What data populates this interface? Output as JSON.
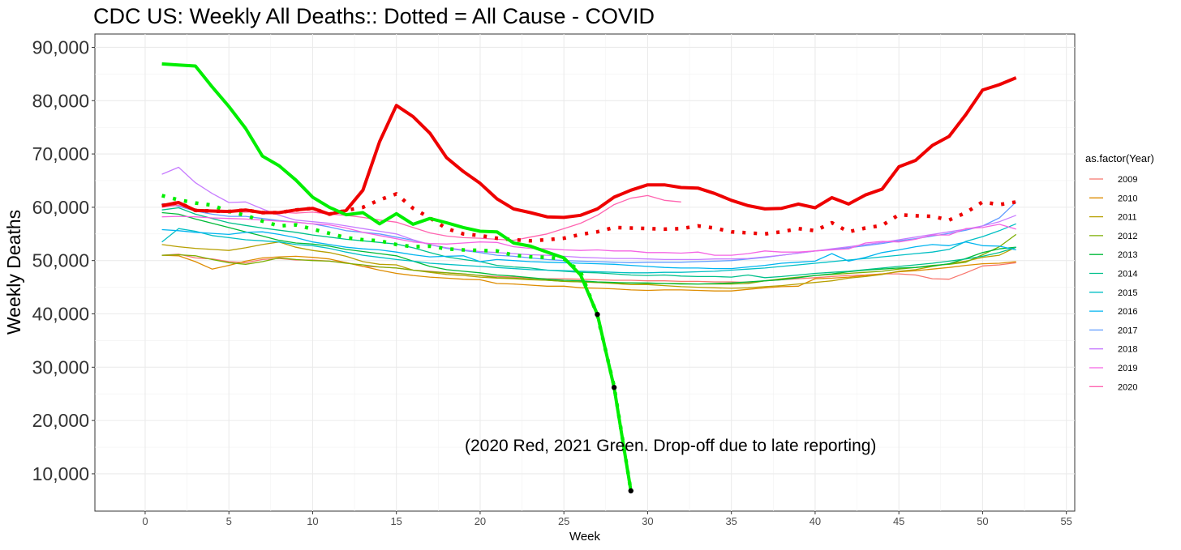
{
  "chart_data": {
    "type": "line",
    "title": "CDC US: Weekly All Deaths:: Dotted = All Cause - COVID",
    "xlabel": "Week",
    "ylabel": "Weekly Deaths",
    "xlim": [
      -3,
      55.5
    ],
    "ylim": [
      3000,
      92500
    ],
    "xticks": [
      0,
      5,
      10,
      15,
      20,
      25,
      30,
      35,
      40,
      45,
      50,
      55
    ],
    "yticks": [
      10000,
      20000,
      30000,
      40000,
      50000,
      60000,
      70000,
      80000,
      90000
    ],
    "ytick_labels": [
      "10,000",
      "20,000",
      "30,000",
      "40,000",
      "50,000",
      "60,000",
      "70,000",
      "80,000",
      "90,000"
    ],
    "grid": true,
    "legend": {
      "title": "as.factor(Year)",
      "position": "right"
    },
    "annotation": {
      "text": "(2020 Red, 2021 Green. Drop-off due to late reporting)",
      "x": 33,
      "y": 14500
    },
    "series": [
      {
        "name": "2009",
        "color": "#F8766D",
        "values": [
          51000,
          51200,
          50500,
          50300,
          49800,
          49600,
          50200,
          50400,
          50100,
          50100,
          49900,
          49600,
          48900,
          48800,
          48600,
          48200,
          48000,
          47700,
          47500,
          47200,
          47000,
          46900,
          46700,
          46600,
          46600,
          46500,
          46400,
          46300,
          46300,
          46200,
          46200,
          46100,
          46100,
          46000,
          46000,
          45900,
          46200,
          46400,
          46600,
          46800,
          47000,
          47200,
          47300,
          47500,
          47500,
          47300,
          46600,
          46500,
          47700,
          49000,
          49200,
          49600
        ]
      },
      {
        "name": "2010",
        "color": "#DE8C00",
        "values": [
          51000,
          50900,
          49800,
          48400,
          49100,
          49900,
          50500,
          50700,
          50800,
          50600,
          50300,
          49600,
          48900,
          48200,
          47600,
          47200,
          46900,
          46700,
          46500,
          46400,
          45700,
          45600,
          45400,
          45200,
          45200,
          44900,
          44800,
          44700,
          44500,
          44400,
          44500,
          44500,
          44400,
          44300,
          44300,
          44600,
          44900,
          45100,
          45200,
          46600,
          46700,
          46900,
          47200,
          47500,
          47900,
          48100,
          48400,
          48700,
          49100,
          49400,
          49500,
          49800
        ]
      },
      {
        "name": "2011",
        "color": "#B79F00",
        "values": [
          53000,
          52600,
          52300,
          52100,
          51900,
          52400,
          53000,
          53500,
          52500,
          51900,
          51500,
          50800,
          49800,
          49300,
          49200,
          48200,
          47800,
          47400,
          47200,
          46900,
          46700,
          46600,
          46400,
          46300,
          46100,
          46000,
          45900,
          45700,
          45500,
          45500,
          45300,
          45100,
          45000,
          44900,
          44800,
          44900,
          45100,
          45300,
          45600,
          45900,
          46200,
          46700,
          47000,
          47400,
          48000,
          48300,
          48900,
          49400,
          49900,
          50600,
          51000,
          52500
        ]
      },
      {
        "name": "2012",
        "color": "#7CAE00",
        "values": [
          51000,
          51100,
          50900,
          50200,
          49600,
          49300,
          49800,
          50500,
          50200,
          50000,
          49900,
          49500,
          49200,
          48800,
          48600,
          48200,
          47900,
          47700,
          47500,
          47200,
          46800,
          46700,
          46500,
          46300,
          46100,
          46000,
          45900,
          45800,
          45800,
          45700,
          45700,
          45700,
          45600,
          45600,
          45600,
          45700,
          46200,
          46600,
          46900,
          47200,
          47400,
          47600,
          47800,
          48000,
          48400,
          48700,
          49100,
          49300,
          49700,
          51100,
          52600,
          54900
        ]
      },
      {
        "name": "2013",
        "color": "#00BA38",
        "values": [
          59000,
          58700,
          57800,
          57000,
          56200,
          55400,
          54600,
          53800,
          53300,
          53100,
          52700,
          52100,
          51700,
          51300,
          50900,
          49900,
          48900,
          48300,
          48000,
          47700,
          47300,
          47100,
          46800,
          46500,
          46300,
          46200,
          46000,
          45900,
          45800,
          45800,
          45700,
          45600,
          45600,
          45700,
          45800,
          46000,
          46200,
          46400,
          46800,
          47200,
          47500,
          47900,
          48200,
          48400,
          48600,
          48700,
          49000,
          49400,
          50400,
          51500,
          52200,
          52500
        ]
      },
      {
        "name": "2014",
        "color": "#00C08B",
        "values": [
          59500,
          59900,
          58700,
          57900,
          57100,
          56600,
          56100,
          55700,
          55300,
          54800,
          54400,
          54000,
          53700,
          53400,
          53100,
          52400,
          51500,
          50700,
          50200,
          49800,
          49100,
          48800,
          48600,
          48200,
          48000,
          47800,
          47700,
          47500,
          47300,
          47200,
          47300,
          47100,
          47000,
          47000,
          46900,
          47300,
          46800,
          47000,
          47300,
          47600,
          47800,
          48000,
          48300,
          48600,
          48900,
          49200,
          49500,
          49900,
          50300,
          50800,
          51500,
          52500
        ]
      },
      {
        "name": "2015",
        "color": "#00BFC4",
        "values": [
          53500,
          56000,
          55500,
          54700,
          54300,
          53900,
          53700,
          53500,
          53000,
          52800,
          52300,
          51600,
          51000,
          50600,
          50200,
          49900,
          49500,
          49300,
          49100,
          48900,
          48700,
          48500,
          48300,
          48200,
          48100,
          48000,
          47900,
          47800,
          47700,
          47700,
          47800,
          47800,
          47900,
          48000,
          48200,
          48400,
          48600,
          48900,
          49200,
          49500,
          49800,
          50100,
          50400,
          50700,
          51000,
          51300,
          51600,
          52100,
          53600,
          54500,
          55600,
          56900
        ]
      },
      {
        "name": "2016",
        "color": "#00B4F0",
        "values": [
          55800,
          55600,
          55300,
          55100,
          54900,
          55300,
          55400,
          54900,
          54300,
          53500,
          53000,
          52500,
          52200,
          52000,
          51600,
          51100,
          50700,
          50800,
          50900,
          49800,
          50200,
          50000,
          49800,
          49700,
          49600,
          49500,
          49400,
          49300,
          49100,
          48900,
          48700,
          48600,
          48600,
          48500,
          48500,
          48800,
          49100,
          49500,
          49700,
          49900,
          51300,
          49900,
          50600,
          51500,
          52000,
          52600,
          53000,
          52800,
          53500,
          52800,
          52700,
          52000
        ]
      },
      {
        "name": "2017",
        "color": "#619CFF",
        "values": [
          60700,
          60200,
          59300,
          58700,
          58300,
          58300,
          57900,
          57500,
          57200,
          56900,
          56300,
          55600,
          55300,
          55000,
          54400,
          53800,
          53000,
          52300,
          51900,
          51500,
          51000,
          50800,
          50500,
          50200,
          50000,
          49900,
          49800,
          49700,
          49600,
          49700,
          49700,
          49700,
          49800,
          49900,
          50000,
          50300,
          50600,
          51000,
          51400,
          51800,
          52100,
          52400,
          52800,
          53200,
          53700,
          54100,
          54600,
          55100,
          55700,
          56500,
          58000,
          61000
        ]
      },
      {
        "name": "2018",
        "color": "#C77CFF",
        "values": [
          66200,
          67500,
          64600,
          62600,
          60900,
          61000,
          59700,
          58500,
          57600,
          57300,
          57000,
          56500,
          56000,
          55500,
          55000,
          53900,
          53000,
          52400,
          52000,
          51700,
          51500,
          51300,
          51100,
          51000,
          50800,
          50600,
          50500,
          50400,
          50400,
          50300,
          50200,
          50200,
          50200,
          50300,
          50300,
          50400,
          50700,
          51000,
          51400,
          51800,
          52200,
          52600,
          53000,
          53400,
          53900,
          54400,
          54900,
          55400,
          55900,
          56500,
          57300,
          58500
        ]
      },
      {
        "name": "2019",
        "color": "#F564E3",
        "values": [
          58200,
          58300,
          58200,
          58000,
          57900,
          57800,
          57600,
          57400,
          57200,
          56900,
          56700,
          56100,
          55300,
          54700,
          54100,
          53500,
          53200,
          53100,
          53300,
          53500,
          53400,
          52600,
          52300,
          52200,
          52000,
          51900,
          52000,
          51800,
          51800,
          51500,
          51500,
          51400,
          51600,
          51000,
          51000,
          51300,
          51800,
          51600,
          51600,
          51800,
          52000,
          52200,
          53300,
          53600,
          53500,
          54000,
          54800,
          54800,
          56000,
          56200,
          56800,
          55900
        ]
      },
      {
        "name": "2020",
        "color": "#FF64B0",
        "values": [
          60000,
          60400,
          59300,
          59200,
          59200,
          59100,
          59200,
          59100,
          58900,
          59100,
          58700,
          58500,
          58100,
          57600,
          57200,
          56200,
          55200,
          54600,
          54300,
          54200,
          54000,
          53800,
          54400,
          55000,
          56000,
          57000,
          58500,
          60500,
          61700,
          62200,
          61300,
          61000
        ]
      }
    ],
    "highlight_series": [
      {
        "name": "2020 total",
        "color": "#EE0000",
        "style": "solid",
        "values": [
          60300,
          60900,
          59400,
          59300,
          59200,
          59500,
          59000,
          59000,
          59500,
          59800,
          58700,
          59400,
          63200,
          72300,
          79100,
          77000,
          73900,
          69300,
          66700,
          64500,
          61600,
          59700,
          59000,
          58200,
          58100,
          58500,
          59700,
          61900,
          63200,
          64200,
          64200,
          63700,
          63600,
          62600,
          61300,
          60300,
          59700,
          59800,
          60600,
          59900,
          61800,
          60600,
          62300,
          63400,
          67600,
          68800,
          71600,
          73300,
          77400,
          82000,
          83000,
          84300
        ]
      },
      {
        "name": "2020 all cause minus covid",
        "color": "#EE0000",
        "style": "dotted",
        "values": [
          60300,
          60900,
          59400,
          59300,
          59200,
          59500,
          59000,
          59000,
          59500,
          59800,
          58700,
          59400,
          60000,
          61400,
          62500,
          59800,
          58000,
          56000,
          55000,
          54700,
          54200,
          53900,
          53700,
          53900,
          54200,
          54900,
          55400,
          56200,
          56100,
          56000,
          55900,
          56000,
          56500,
          56100,
          55400,
          55200,
          55000,
          55400,
          56000,
          55600,
          57100,
          55400,
          56100,
          56600,
          58600,
          58400,
          58300,
          57600,
          59000,
          61000,
          60500,
          61000
        ]
      },
      {
        "name": "2021 total",
        "color": "#00EE00",
        "style": "solid",
        "values": [
          86900,
          86700,
          86500,
          82600,
          78900,
          74800,
          69600,
          67800,
          65100,
          61900,
          60000,
          58600,
          59000,
          56900,
          58800,
          56800,
          57900,
          57100,
          56200,
          55500,
          55400,
          53300,
          52700,
          51600,
          50500,
          47300,
          39900,
          26200,
          6800
        ]
      },
      {
        "name": "2021 all cause minus covid",
        "color": "#00EE00",
        "style": "dotted",
        "values": [
          62200,
          61400,
          60800,
          60400,
          59200,
          58500,
          57400,
          56500,
          56700,
          55900,
          55100,
          54300,
          53900,
          53700,
          53000,
          52600,
          52700,
          52200,
          52000,
          51900,
          51800,
          51000,
          50700,
          50600,
          50300,
          47900,
          39700,
          26400,
          6800
        ]
      }
    ]
  }
}
